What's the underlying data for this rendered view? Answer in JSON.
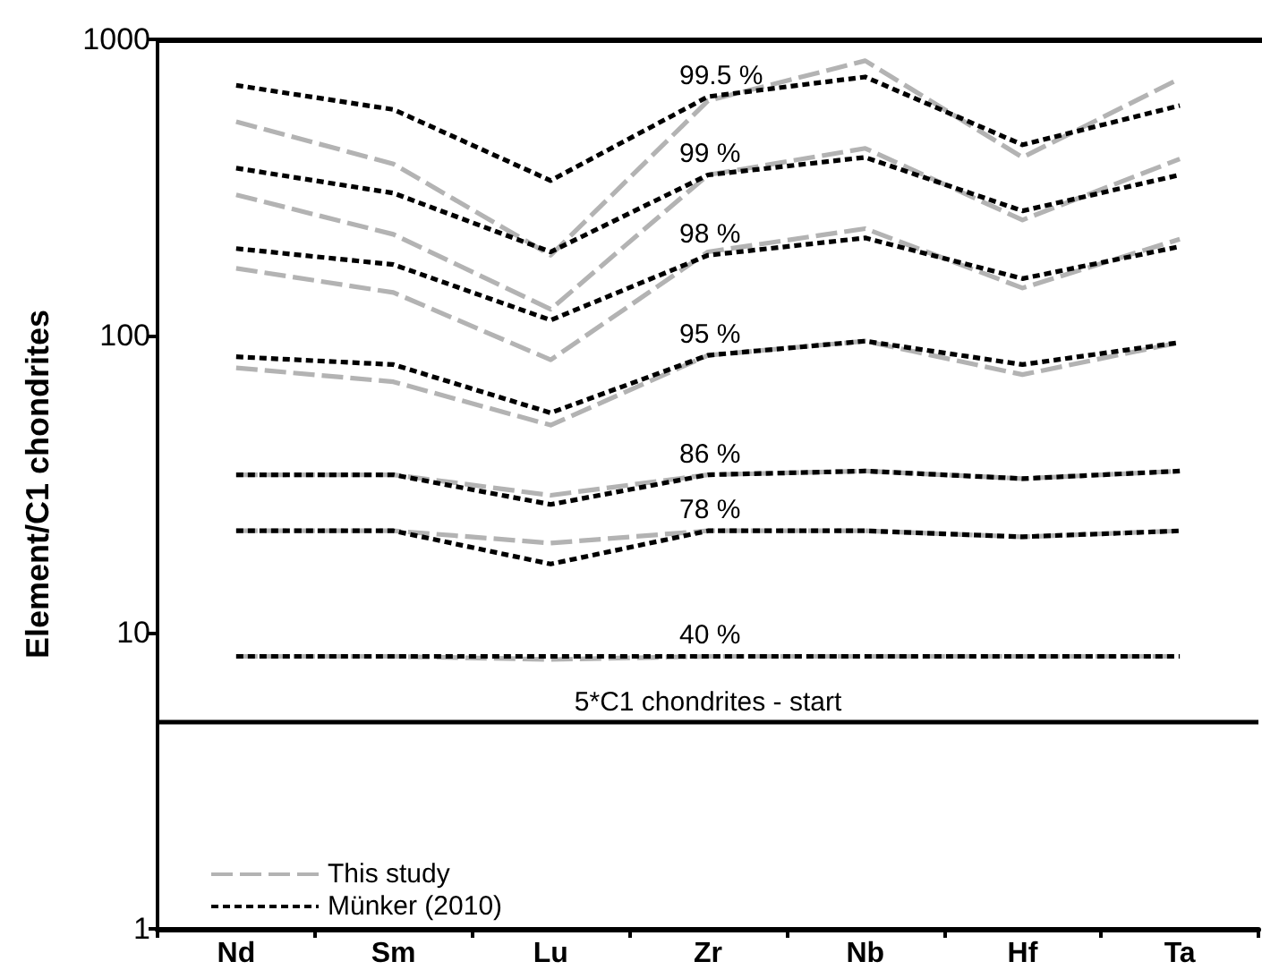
{
  "chart_data": {
    "type": "line",
    "ylabel": "Element/C1 chondrites",
    "categories": [
      "Nd",
      "Sm",
      "Lu",
      "Zr",
      "Nb",
      "Hf",
      "Ta"
    ],
    "log": "y",
    "ylim": [
      1,
      1000
    ],
    "yticks": [
      1,
      10,
      100,
      1000
    ],
    "grid": false,
    "legend": "bottom left",
    "marker": "none",
    "series": [
      {
        "name": "Münker (2010)",
        "color": "#000000",
        "line_style": "dotted",
        "values": [
          700,
          580,
          334,
          641,
          747,
          441,
          598
        ]
      },
      {
        "name": "This study",
        "color": "#b3b3b3",
        "line_style": "dashed",
        "values": [
          528,
          380,
          187,
          621,
          847,
          400,
          737
        ]
      },
      {
        "color": "#000000",
        "line_style": "dotted",
        "values": [
          368,
          303,
          192,
          349,
          400,
          264,
          349
        ]
      },
      {
        "color": "#b3b3b3",
        "line_style": "dashed",
        "values": [
          299,
          220,
          123,
          349,
          429,
          246,
          395
        ]
      },
      {
        "color": "#000000",
        "line_style": "dotted",
        "values": [
          197,
          174,
          113,
          187,
          214,
          156,
          200
        ]
      },
      {
        "color": "#b3b3b3",
        "line_style": "dashed",
        "values": [
          169,
          140,
          83,
          192,
          230,
          145,
          212
        ]
      },
      {
        "color": "#000000",
        "line_style": "dotted",
        "values": [
          85,
          80,
          55,
          86,
          96,
          80,
          95
        ]
      },
      {
        "color": "#b3b3b3",
        "line_style": "dashed",
        "values": [
          78,
          70,
          50,
          86,
          96,
          74,
          95
        ]
      },
      {
        "color": "#000000",
        "line_style": "dotted",
        "values": [
          34,
          34,
          27,
          34,
          35,
          33,
          35
        ]
      },
      {
        "color": "#b3b3b3",
        "line_style": "dashed",
        "values": [
          34,
          34,
          29,
          34,
          35,
          33,
          35
        ]
      },
      {
        "color": "#000000",
        "line_style": "dotted",
        "values": [
          22,
          22,
          17,
          22,
          22,
          21,
          22
        ]
      },
      {
        "color": "#b3b3b3",
        "line_style": "dashed",
        "values": [
          22,
          22,
          20,
          22,
          22,
          21,
          22
        ]
      },
      {
        "color": "#000000",
        "line_style": "dotted",
        "values": [
          8.3,
          8.3,
          8.3,
          8.3,
          8.3,
          8.3,
          8.3
        ]
      },
      {
        "color": "#b3b3b3",
        "line_style": "dashed",
        "values": [
          8.3,
          8.3,
          8.1,
          8.3,
          8.3,
          8.3,
          8.3
        ]
      }
    ],
    "ref_lines": [
      {
        "axis": "y",
        "value": 5,
        "label": "5*C1 chondrites - start",
        "color": "#000000",
        "line_style": "solid"
      }
    ],
    "annotations": [
      {
        "text": "99.5 %",
        "x": "Zr",
        "y": 641
      },
      {
        "text": "99 %",
        "x": "Zr",
        "y": 349
      },
      {
        "text": "98 %",
        "x": "Zr",
        "y": 187
      },
      {
        "text": "95 %",
        "x": "Zr",
        "y": 86
      },
      {
        "text": "86 %",
        "x": "Zr",
        "y": 34
      },
      {
        "text": "78 %",
        "x": "Zr",
        "y": 22
      },
      {
        "text": "40 %",
        "x": "Zr",
        "y": 8.3
      }
    ]
  }
}
